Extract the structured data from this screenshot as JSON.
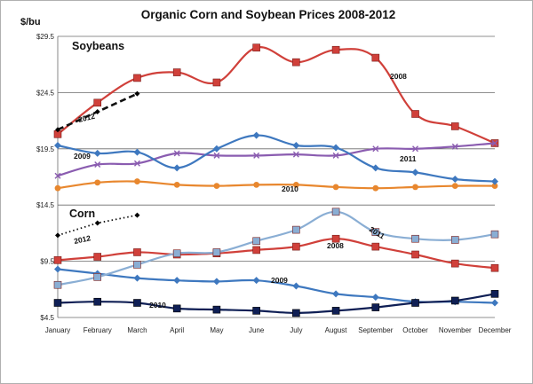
{
  "chart_data": {
    "type": "line",
    "title": "Organic Corn and Soybean Prices 2008-2012",
    "ylabel": "$/bu",
    "xlabel": "",
    "ylim": [
      4.5,
      29.5
    ],
    "yticks": [
      "$4.5",
      "$9.5",
      "$14.5",
      "$19.5",
      "$24.5",
      "$29.5"
    ],
    "ytick_values": [
      4.5,
      9.5,
      14.5,
      19.5,
      24.5,
      29.5
    ],
    "grid": true,
    "categories": [
      "January",
      "February",
      "March",
      "April",
      "May",
      "June",
      "July",
      "August",
      "September",
      "October",
      "November",
      "December"
    ],
    "group_labels": [
      "Soybeans",
      "Corn"
    ],
    "series": [
      {
        "name": "Soybeans 2008",
        "label": "2008",
        "color": "#d0403a",
        "marker": "square",
        "values": [
          20.8,
          23.6,
          25.8,
          26.3,
          25.4,
          28.5,
          27.2,
          28.3,
          27.6,
          22.6,
          21.5,
          20.0
        ]
      },
      {
        "name": "Soybeans 2009",
        "label": "2009",
        "color": "#8a5cb0",
        "marker": "x",
        "values": [
          17.1,
          18.1,
          18.2,
          19.1,
          18.9,
          18.9,
          19.0,
          18.9,
          19.5,
          19.5,
          19.7,
          20.0
        ]
      },
      {
        "name": "Soybeans 2010",
        "label": "2010",
        "color": "#e8872e",
        "marker": "circle",
        "values": [
          16.0,
          16.5,
          16.6,
          16.3,
          16.2,
          16.3,
          16.3,
          16.1,
          16.0,
          16.1,
          16.2,
          16.2
        ]
      },
      {
        "name": "Soybeans 2011",
        "label": "2011",
        "color": "#3e78bf",
        "marker": "diamond",
        "values": [
          19.8,
          19.1,
          19.2,
          17.8,
          19.5,
          20.7,
          19.8,
          19.6,
          17.8,
          17.4,
          16.8,
          16.6
        ]
      },
      {
        "name": "Soybeans 2012",
        "label": "2012",
        "color": "#111111",
        "marker": "dash",
        "values": [
          21.2,
          22.8,
          24.4,
          null,
          null,
          null,
          null,
          null,
          null,
          null,
          null,
          null
        ]
      },
      {
        "name": "Corn 2008",
        "label": "2008",
        "color": "#d0403a",
        "marker": "square",
        "values": [
          9.6,
          9.9,
          10.3,
          10.1,
          10.2,
          10.5,
          10.8,
          11.5,
          10.8,
          10.1,
          9.3,
          8.9
        ]
      },
      {
        "name": "Corn 2009",
        "label": "2009",
        "color": "#3e78bf",
        "marker": "diamond",
        "values": [
          8.8,
          8.4,
          8.0,
          7.8,
          7.7,
          7.8,
          7.3,
          6.6,
          6.3,
          5.9,
          5.9,
          5.8
        ]
      },
      {
        "name": "Corn 2010",
        "label": "2010",
        "color": "#0f1f55",
        "marker": "square",
        "values": [
          5.8,
          5.9,
          5.8,
          5.3,
          5.2,
          5.1,
          4.9,
          5.1,
          5.4,
          5.8,
          6.0,
          6.6
        ]
      },
      {
        "name": "Corn 2011",
        "label": "2011",
        "color": "#8aaed4",
        "marker": "square",
        "values": [
          7.4,
          8.1,
          9.2,
          10.2,
          10.3,
          11.3,
          12.3,
          13.9,
          12.1,
          11.5,
          11.4,
          11.9
        ]
      },
      {
        "name": "Corn 2012",
        "label": "2012",
        "color": "#111111",
        "marker": "dot",
        "values": [
          11.8,
          12.9,
          13.6,
          null,
          null,
          null,
          null,
          null,
          null,
          null,
          null,
          null
        ]
      }
    ]
  }
}
